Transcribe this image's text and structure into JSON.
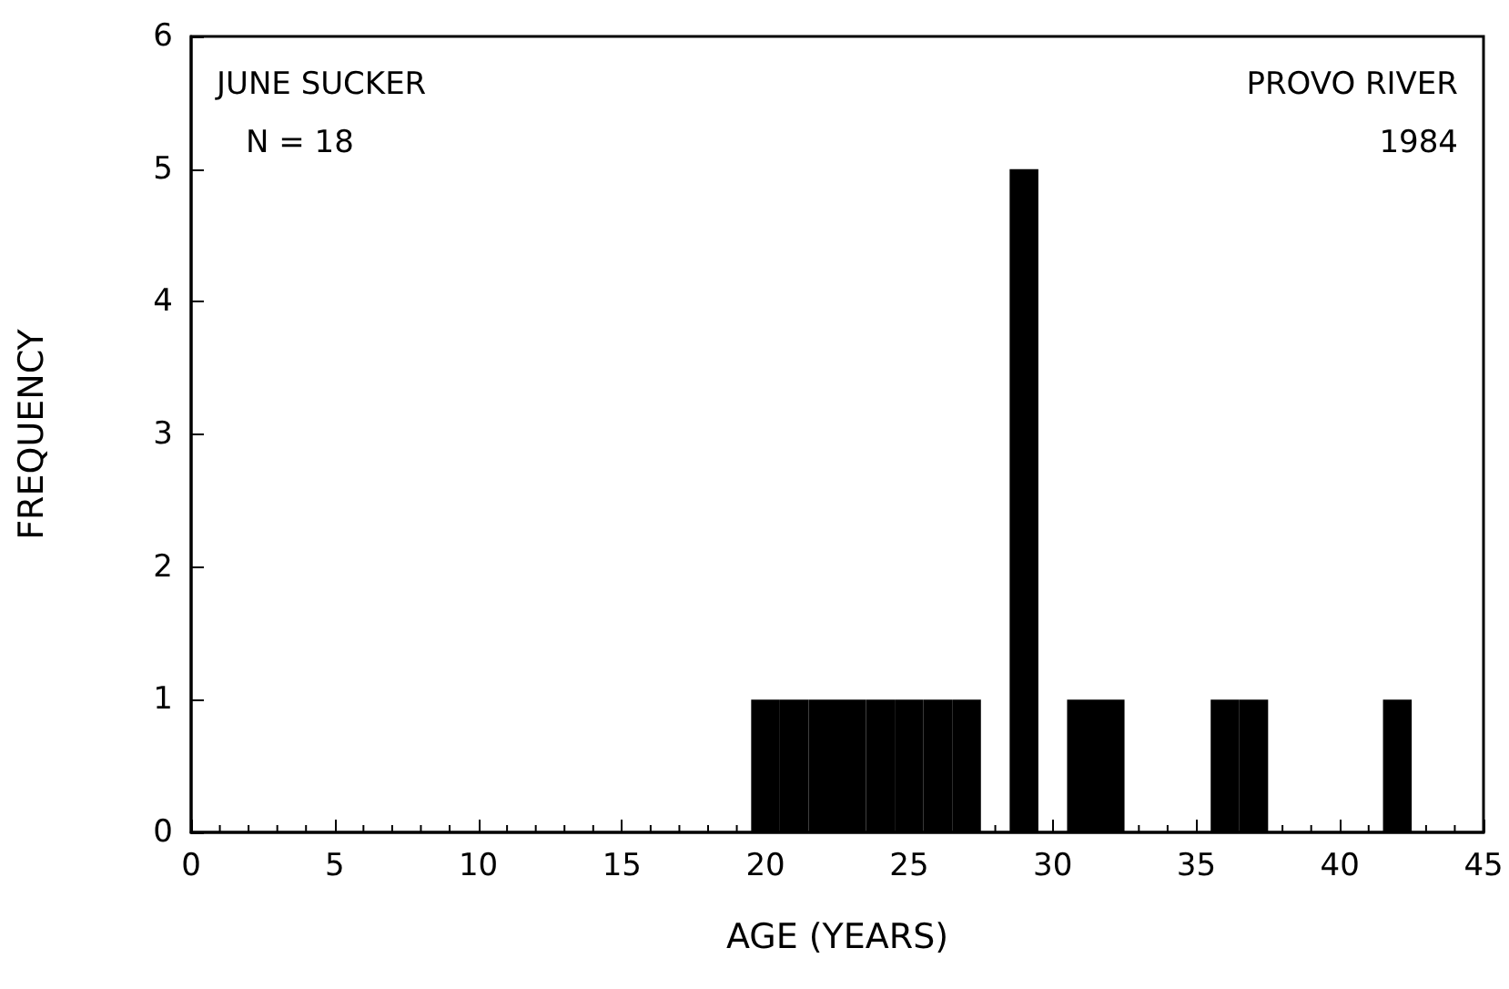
{
  "chart_data": {
    "type": "histogram",
    "xlabel": "AGE (YEARS)",
    "ylabel": "FREQUENCY",
    "annotations": [
      "JUNE SUCKER",
      "N = 18",
      "PROVO RIVER",
      "1984"
    ],
    "bins": [
      19.5,
      20.5,
      21.5,
      22.5,
      23.5,
      24.5,
      25.5,
      26.5,
      27.5,
      28.5,
      29.5,
      30.5,
      31.5,
      32.5,
      33.5,
      34.5,
      35.5,
      36.5,
      37.5,
      38.5,
      39.5,
      40.5,
      41.5,
      42.5
    ],
    "values": [
      1,
      1,
      1,
      1,
      1,
      1,
      1,
      1,
      0,
      5,
      0,
      1,
      1,
      0,
      0,
      0,
      1,
      1,
      0,
      0,
      0,
      0,
      1
    ],
    "color": "#000000",
    "xlim": [
      0,
      45
    ],
    "xticks": [
      0,
      5,
      10,
      15,
      20,
      25,
      30,
      35,
      40,
      45
    ],
    "ylim": [
      0,
      6
    ],
    "yticks": [
      0,
      1,
      2,
      3,
      4,
      5,
      6
    ],
    "grid": false
  }
}
